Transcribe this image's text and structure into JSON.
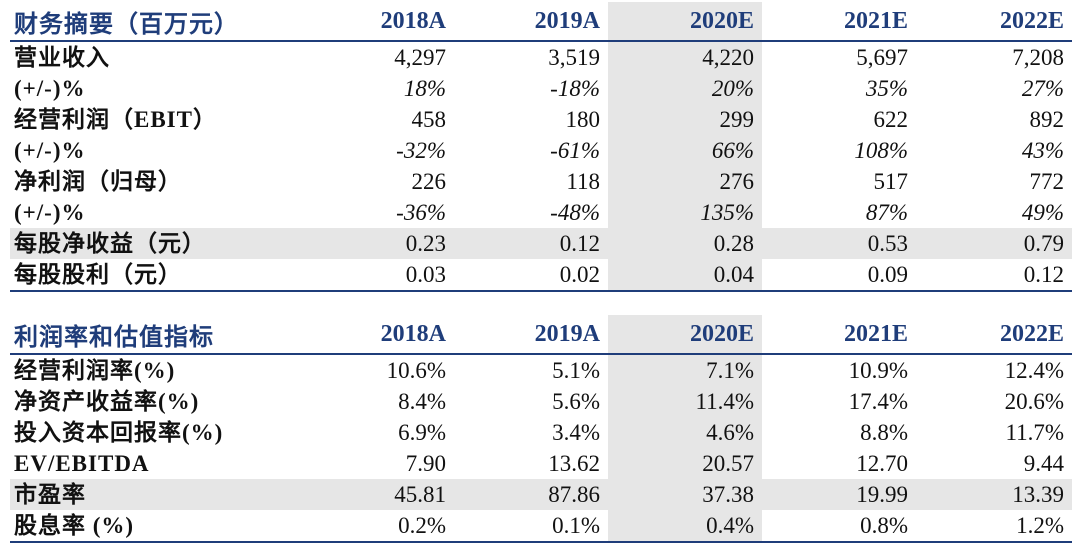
{
  "summary": {
    "title": "财务摘要（百万元）",
    "years": [
      "2018A",
      "2019A",
      "2020E",
      "2021E",
      "2022E"
    ],
    "rows": [
      {
        "label": "营业收入",
        "values": [
          "4,297",
          "3,519",
          "4,220",
          "5,697",
          "7,208"
        ]
      },
      {
        "label": "(+/-)%",
        "values": [
          "18%",
          "-18%",
          "20%",
          "35%",
          "27%"
        ]
      },
      {
        "label": "经营利润（EBIT）",
        "values": [
          "458",
          "180",
          "299",
          "622",
          "892"
        ]
      },
      {
        "label": "(+/-)%",
        "values": [
          "-32%",
          "-61%",
          "66%",
          "108%",
          "43%"
        ]
      },
      {
        "label": "净利润（归母）",
        "values": [
          "226",
          "118",
          "276",
          "517",
          "772"
        ]
      },
      {
        "label": "(+/-)%",
        "values": [
          "-36%",
          "-48%",
          "135%",
          "87%",
          "49%"
        ]
      },
      {
        "label": "每股净收益（元）",
        "values": [
          "0.23",
          "0.12",
          "0.28",
          "0.53",
          "0.79"
        ]
      },
      {
        "label": "每股股利（元）",
        "values": [
          "0.03",
          "0.02",
          "0.04",
          "0.09",
          "0.12"
        ]
      }
    ]
  },
  "valuation": {
    "title": "利润率和估值指标",
    "years": [
      "2018A",
      "2019A",
      "2020E",
      "2021E",
      "2022E"
    ],
    "rows": [
      {
        "label": "经营利润率(%)",
        "values": [
          "10.6%",
          "5.1%",
          "7.1%",
          "10.9%",
          "12.4%"
        ]
      },
      {
        "label": "净资产收益率(%)",
        "values": [
          "8.4%",
          "5.6%",
          "11.4%",
          "17.4%",
          "20.6%"
        ]
      },
      {
        "label": "投入资本回报率(%)",
        "values": [
          "6.9%",
          "3.4%",
          "4.6%",
          "8.8%",
          "11.7%"
        ]
      },
      {
        "label": "EV/EBITDA",
        "values": [
          "7.90",
          "13.62",
          "20.57",
          "12.70",
          "9.44"
        ]
      },
      {
        "label": "市盈率",
        "values": [
          "45.81",
          "87.86",
          "37.38",
          "19.99",
          "13.39"
        ]
      },
      {
        "label": "股息率 (%)",
        "values": [
          "0.2%",
          "0.1%",
          "0.4%",
          "0.8%",
          "1.2%"
        ]
      }
    ]
  },
  "colors": {
    "header_text": "#1f3d7a",
    "highlight_fill": "#e6e6e6"
  }
}
